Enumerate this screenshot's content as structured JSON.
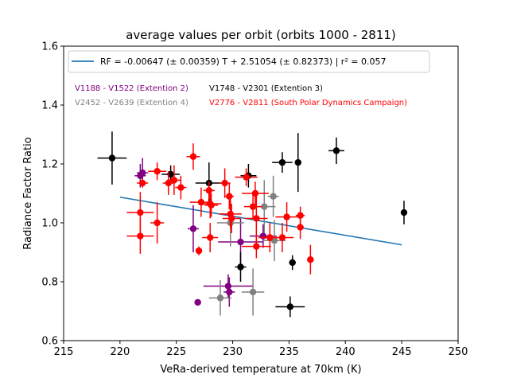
{
  "chart_data": {
    "type": "scatter",
    "title": "average values per orbit (orbits 1000 - 2811)",
    "xlabel": "VeRa-derived temperature at 70km (K)",
    "ylabel": "Radiance Factor Ratio",
    "xlim": [
      215,
      250
    ],
    "ylim": [
      0.6,
      1.6
    ],
    "xticks": [
      "215",
      "220",
      "225",
      "230",
      "235",
      "240",
      "245",
      "250"
    ],
    "yticks": [
      "0.6",
      "0.8",
      "1.0",
      "1.2",
      "1.4",
      "1.6"
    ],
    "grid": false,
    "legend": {
      "placement": "top-left",
      "entry": "RF = -0.00647 (± 0.00359) T + 2.51054 (± 0.82373) | r² = 0.057"
    },
    "fit_line": {
      "slope": -0.00647,
      "intercept": 2.51054,
      "x_range": [
        220,
        245
      ],
      "color": "#1f77b4"
    },
    "series": [
      {
        "name": "V1188 - V1522 (Extention 2)",
        "color": "#800080",
        "points": [
          {
            "x": 221.8,
            "y": 1.16,
            "xerr": 0.5,
            "yerr": 0.04
          },
          {
            "x": 222.0,
            "y": 1.17,
            "xerr": 0.5,
            "yerr": 0.05
          },
          {
            "x": 226.5,
            "y": 0.98,
            "xerr": 0.5,
            "yerr": 0.08
          },
          {
            "x": 226.9,
            "y": 0.73,
            "xerr": 0.3,
            "yerr": 0.01
          },
          {
            "x": 229.6,
            "y": 0.785,
            "xerr": 2.2,
            "yerr": 0.04
          },
          {
            "x": 229.7,
            "y": 0.765,
            "xerr": 0.5,
            "yerr": 0.05
          },
          {
            "x": 230.7,
            "y": 0.935,
            "xerr": 2.0,
            "yerr": 0.08
          },
          {
            "x": 232.7,
            "y": 0.955,
            "xerr": 1.2,
            "yerr": 0.04
          }
        ]
      },
      {
        "name": "V1748 - V2301 (Extention 3)",
        "color": "#000000",
        "points": [
          {
            "x": 219.3,
            "y": 1.22,
            "xerr": 1.3,
            "yerr": 0.09
          },
          {
            "x": 224.5,
            "y": 1.165,
            "xerr": 0.8,
            "yerr": 0.03
          },
          {
            "x": 227.9,
            "y": 1.135,
            "xerr": 1.2,
            "yerr": 0.07
          },
          {
            "x": 231.4,
            "y": 1.16,
            "xerr": 0.7,
            "yerr": 0.04
          },
          {
            "x": 230.7,
            "y": 0.85,
            "xerr": 0.5,
            "yerr": 0.05
          },
          {
            "x": 234.4,
            "y": 1.205,
            "xerr": 0.9,
            "yerr": 0.035
          },
          {
            "x": 235.8,
            "y": 1.205,
            "xerr": 0.3,
            "yerr": 0.1
          },
          {
            "x": 235.3,
            "y": 0.865,
            "xerr": 0.3,
            "yerr": 0.025
          },
          {
            "x": 235.1,
            "y": 0.715,
            "xerr": 1.3,
            "yerr": 0.035
          },
          {
            "x": 239.2,
            "y": 1.245,
            "xerr": 0.7,
            "yerr": 0.045
          },
          {
            "x": 245.2,
            "y": 1.035,
            "xerr": 0.2,
            "yerr": 0.04
          }
        ]
      },
      {
        "name": "V2452 - V2639 (Extention 4)",
        "color": "#808080",
        "points": [
          {
            "x": 229.8,
            "y": 1.0,
            "xerr": 1.2,
            "yerr": 0.08
          },
          {
            "x": 232.8,
            "y": 1.055,
            "xerr": 1.0,
            "yerr": 0.09
          },
          {
            "x": 233.6,
            "y": 1.09,
            "xerr": 0.5,
            "yerr": 0.07
          },
          {
            "x": 233.7,
            "y": 0.94,
            "xerr": 1.0,
            "yerr": 0.07
          },
          {
            "x": 228.9,
            "y": 0.745,
            "xerr": 1.0,
            "yerr": 0.06
          },
          {
            "x": 231.8,
            "y": 0.765,
            "xerr": 1.0,
            "yerr": 0.08
          }
        ]
      },
      {
        "name": "V2776 - V2811 (South Polar Dynamics Campaign)",
        "color": "#ff0000",
        "points": [
          {
            "x": 222.0,
            "y": 1.135,
            "xerr": 0.5,
            "yerr": 0.015
          },
          {
            "x": 223.3,
            "y": 1.175,
            "xerr": 0.8,
            "yerr": 0.03
          },
          {
            "x": 224.3,
            "y": 1.135,
            "xerr": 0.5,
            "yerr": 0.04
          },
          {
            "x": 224.8,
            "y": 1.145,
            "xerr": 0.6,
            "yerr": 0.05
          },
          {
            "x": 225.4,
            "y": 1.12,
            "xerr": 0.5,
            "yerr": 0.04
          },
          {
            "x": 221.8,
            "y": 1.035,
            "xerr": 1.2,
            "yerr": 0.07
          },
          {
            "x": 221.8,
            "y": 0.955,
            "xerr": 1.2,
            "yerr": 0.06
          },
          {
            "x": 223.3,
            "y": 1.0,
            "xerr": 0.6,
            "yerr": 0.07
          },
          {
            "x": 226.5,
            "y": 1.225,
            "xerr": 0.6,
            "yerr": 0.045
          },
          {
            "x": 227.2,
            "y": 1.07,
            "xerr": 1.0,
            "yerr": 0.05
          },
          {
            "x": 227.9,
            "y": 1.11,
            "xerr": 0.5,
            "yerr": 0.03
          },
          {
            "x": 228.0,
            "y": 1.065,
            "xerr": 1.0,
            "yerr": 0.05
          },
          {
            "x": 228.1,
            "y": 1.06,
            "xerr": 0.6,
            "yerr": 0.04
          },
          {
            "x": 228.0,
            "y": 0.95,
            "xerr": 0.7,
            "yerr": 0.05
          },
          {
            "x": 227.0,
            "y": 0.905,
            "xerr": 0.3,
            "yerr": 0.015
          },
          {
            "x": 229.3,
            "y": 1.135,
            "xerr": 0.5,
            "yerr": 0.05
          },
          {
            "x": 229.7,
            "y": 1.09,
            "xerr": 0.4,
            "yerr": 0.045
          },
          {
            "x": 229.8,
            "y": 1.03,
            "xerr": 1.0,
            "yerr": 0.05
          },
          {
            "x": 229.9,
            "y": 1.015,
            "xerr": 0.8,
            "yerr": 0.05
          },
          {
            "x": 231.2,
            "y": 1.155,
            "xerr": 1.0,
            "yerr": 0.03
          },
          {
            "x": 231.8,
            "y": 1.055,
            "xerr": 0.8,
            "yerr": 0.04
          },
          {
            "x": 232.0,
            "y": 1.1,
            "xerr": 1.2,
            "yerr": 0.04
          },
          {
            "x": 232.1,
            "y": 1.015,
            "xerr": 1.0,
            "yerr": 0.08
          },
          {
            "x": 232.1,
            "y": 0.92,
            "xerr": 1.3,
            "yerr": 0.04
          },
          {
            "x": 233.3,
            "y": 0.95,
            "xerr": 1.0,
            "yerr": 0.05
          },
          {
            "x": 234.4,
            "y": 0.95,
            "xerr": 1.0,
            "yerr": 0.05
          },
          {
            "x": 234.8,
            "y": 1.02,
            "xerr": 1.0,
            "yerr": 0.05
          },
          {
            "x": 236.0,
            "y": 1.025,
            "xerr": 0.4,
            "yerr": 0.03
          },
          {
            "x": 236.0,
            "y": 0.985,
            "xerr": 0.3,
            "yerr": 0.04
          },
          {
            "x": 236.9,
            "y": 0.875,
            "xerr": 0.3,
            "yerr": 0.05
          }
        ]
      }
    ]
  }
}
